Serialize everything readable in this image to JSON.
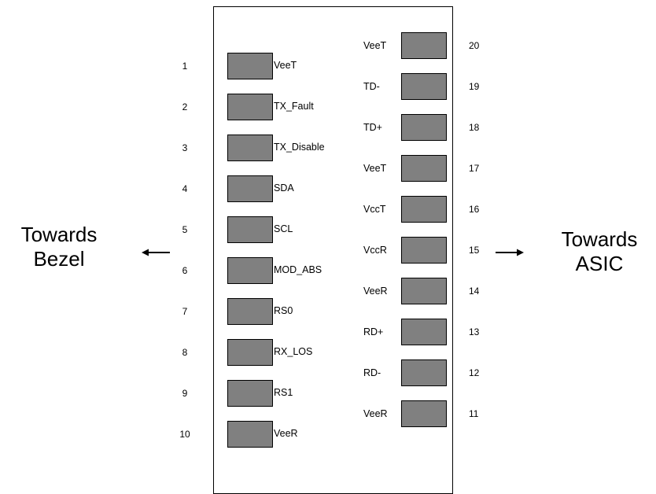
{
  "left_pins": [
    {
      "number": "1",
      "label": "VeeT"
    },
    {
      "number": "2",
      "label": "TX_Fault"
    },
    {
      "number": "3",
      "label": "TX_Disable"
    },
    {
      "number": "4",
      "label": "SDA"
    },
    {
      "number": "5",
      "label": "SCL"
    },
    {
      "number": "6",
      "label": "MOD_ABS"
    },
    {
      "number": "7",
      "label": "RS0"
    },
    {
      "number": "8",
      "label": "RX_LOS"
    },
    {
      "number": "9",
      "label": "RS1"
    },
    {
      "number": "10",
      "label": "VeeR"
    }
  ],
  "right_pins": [
    {
      "number": "20",
      "label": "VeeT"
    },
    {
      "number": "19",
      "label": "TD-"
    },
    {
      "number": "18",
      "label": "TD+"
    },
    {
      "number": "17",
      "label": "VeeT"
    },
    {
      "number": "16",
      "label": "VccT"
    },
    {
      "number": "15",
      "label": "VccR"
    },
    {
      "number": "14",
      "label": "VeeR"
    },
    {
      "number": "13",
      "label": "RD+"
    },
    {
      "number": "12",
      "label": "RD-"
    },
    {
      "number": "11",
      "label": "VeeR"
    }
  ],
  "left_side": {
    "line1": "Towards",
    "line2": "Bezel"
  },
  "right_side": {
    "line1": "Towards",
    "line2": "ASIC"
  },
  "colors": {
    "pad_fill": "#808080",
    "outline": "#000000"
  }
}
